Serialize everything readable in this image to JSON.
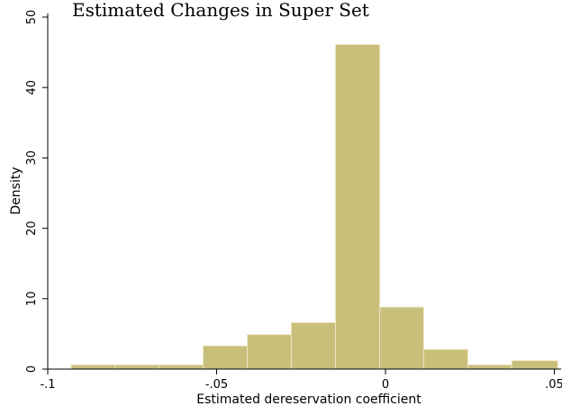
{
  "chart_data": {
    "type": "bar",
    "title": "Estimated Changes in Super Set",
    "xlabel": "Estimated dereservation coefficient",
    "ylabel": "Density",
    "xlim": [
      -0.1,
      0.052
    ],
    "ylim": [
      0,
      50
    ],
    "x_ticks": [
      {
        "value": -0.1,
        "label": "-.1"
      },
      {
        "value": -0.05,
        "label": "-.05"
      },
      {
        "value": 0,
        "label": "0"
      },
      {
        "value": 0.05,
        "label": ".05"
      }
    ],
    "y_ticks": [
      {
        "value": 0,
        "label": "0"
      },
      {
        "value": 10,
        "label": "10"
      },
      {
        "value": 20,
        "label": "20"
      },
      {
        "value": 30,
        "label": "30"
      },
      {
        "value": 40,
        "label": "40"
      },
      {
        "value": 50,
        "label": "50"
      }
    ],
    "bins": [
      {
        "x0": -0.0931,
        "x1": -0.08,
        "density": 0.6
      },
      {
        "x0": -0.08,
        "x1": -0.067,
        "density": 0.6
      },
      {
        "x0": -0.067,
        "x1": -0.054,
        "density": 0.6
      },
      {
        "x0": -0.054,
        "x1": -0.0409,
        "density": 3.3
      },
      {
        "x0": -0.0409,
        "x1": -0.0279,
        "density": 4.9
      },
      {
        "x0": -0.0279,
        "x1": -0.0148,
        "density": 6.6
      },
      {
        "x0": -0.0148,
        "x1": -0.0017,
        "density": 46.1
      },
      {
        "x0": -0.0017,
        "x1": 0.0113,
        "density": 8.8
      },
      {
        "x0": 0.0113,
        "x1": 0.0244,
        "density": 2.8
      },
      {
        "x0": 0.0244,
        "x1": 0.0374,
        "density": 0.6
      },
      {
        "x0": 0.0374,
        "x1": 0.051,
        "density": 1.2
      }
    ],
    "bar_color": "#c8bf7a",
    "bar_edge_color": "#ece6c4",
    "grid": false,
    "legend": "none"
  }
}
